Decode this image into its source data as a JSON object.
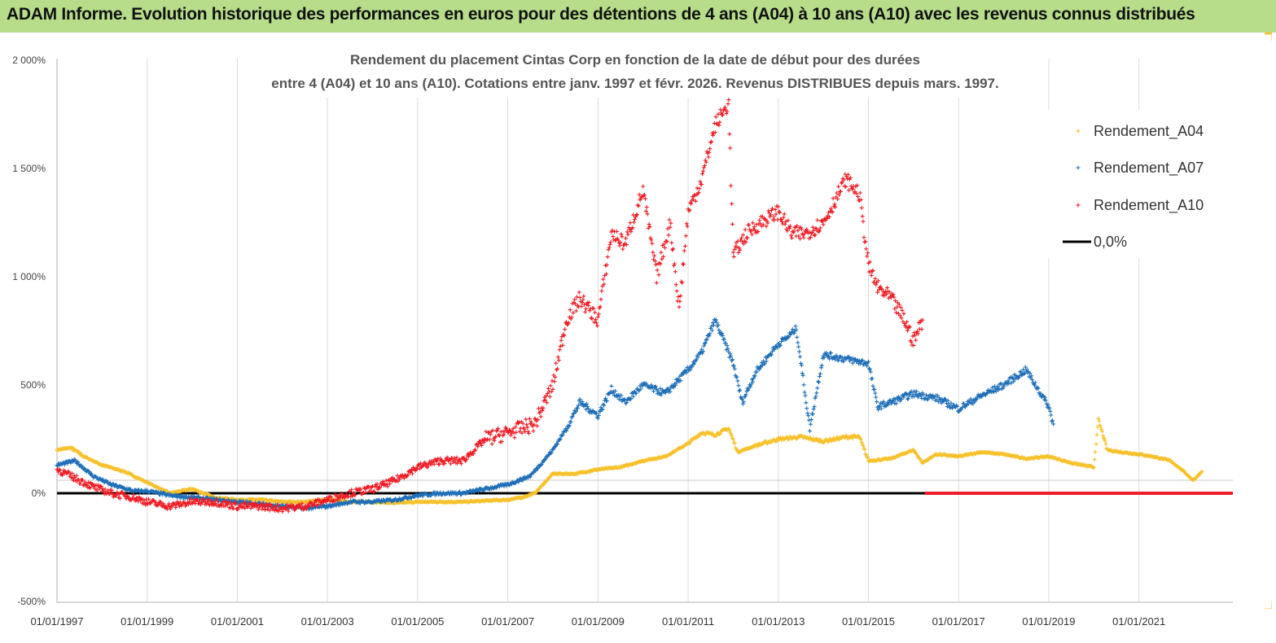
{
  "banner": {
    "title": "ADAM Informe. Evolution historique des performances en euros pour des détentions de 4 ans (A04) à 10 ans (A10) avec les revenus connus distribués"
  },
  "colors": {
    "banner": "#b7dd8a",
    "A04": "#f6c12a",
    "A07": "#1f6fb8",
    "A10": "#ee1c24",
    "zero": "#000000"
  },
  "chart_data": {
    "type": "scatter",
    "title": [
      "Rendement du placement Cintas Corp en fonction de la date de début pour des durées",
      "entre 4 (A04) et 10 ans (A10).  Cotations entre janv. 1997 et févr. 2026. Revenus  DISTRIBUES depuis mars. 1997."
    ],
    "xlabel": "",
    "ylabel": "",
    "xlim": [
      "1997-01-01",
      "2023-02-01"
    ],
    "ylim": [
      -500,
      2000
    ],
    "y_ticks": [
      -500,
      0,
      500,
      1000,
      1500,
      2000
    ],
    "y_tick_labels": [
      "-500%",
      "0%",
      "500%",
      "1 000%",
      "1 500%",
      "2 000%"
    ],
    "x_tick_labels": [
      "01/01/1997",
      "01/01/1999",
      "01/01/2001",
      "01/01/2003",
      "01/01/2005",
      "01/01/2007",
      "01/01/2009",
      "01/01/2011",
      "01/01/2013",
      "01/01/2015",
      "01/01/2017",
      "01/01/2019",
      "01/01/2021"
    ],
    "grid": "vertical",
    "legend_position": "top-right",
    "legend": [
      "Rendement_A04",
      "Rendement_A07",
      "Rendement_A10",
      "0,0%"
    ],
    "series": [
      {
        "name": "Rendement_A04",
        "x": [
          1997.0,
          1997.3,
          1997.6,
          1998.0,
          1998.5,
          1999.0,
          1999.5,
          2000.0,
          2000.5,
          2001.0,
          2001.5,
          2002.0,
          2002.5,
          2003.0,
          2003.5,
          2004.0,
          2004.5,
          2005.0,
          2005.5,
          2006.0,
          2006.5,
          2007.0,
          2007.3,
          2007.6,
          2008.0,
          2008.5,
          2009.0,
          2009.5,
          2010.0,
          2010.5,
          2011.0,
          2011.3,
          2011.6,
          2011.9,
          2012.1,
          2012.5,
          2013.0,
          2013.5,
          2014.0,
          2014.5,
          2014.8,
          2015.0,
          2015.5,
          2016.0,
          2016.2,
          2016.5,
          2017.0,
          2017.5,
          2018.0,
          2018.5,
          2019.0,
          2019.5,
          2020.0,
          2020.1,
          2020.3,
          2020.6,
          2021.0,
          2021.3,
          2021.7,
          2022.0,
          2022.2,
          2022.4
        ],
        "values": [
          200,
          210,
          170,
          130,
          100,
          50,
          0,
          20,
          -20,
          -30,
          -30,
          -40,
          -40,
          -30,
          -40,
          -40,
          -45,
          -40,
          -40,
          -40,
          -35,
          -30,
          -20,
          0,
          90,
          90,
          110,
          120,
          150,
          170,
          230,
          280,
          270,
          300,
          190,
          220,
          250,
          260,
          240,
          260,
          260,
          150,
          160,
          200,
          140,
          180,
          170,
          190,
          180,
          160,
          170,
          140,
          120,
          340,
          200,
          190,
          180,
          170,
          150,
          100,
          60,
          100
        ]
      },
      {
        "name": "Rendement_A07",
        "x": [
          1997.0,
          1997.4,
          1997.8,
          1998.2,
          1998.7,
          1999.0,
          1999.5,
          2000.0,
          2000.5,
          2001.0,
          2001.5,
          2002.0,
          2002.5,
          2003.0,
          2003.5,
          2004.0,
          2004.5,
          2005.0,
          2005.5,
          2006.0,
          2006.5,
          2007.0,
          2007.5,
          2008.0,
          2008.3,
          2008.6,
          2009.0,
          2009.3,
          2009.6,
          2010.0,
          2010.5,
          2011.0,
          2011.3,
          2011.6,
          2012.0,
          2012.2,
          2012.5,
          2013.0,
          2013.2,
          2013.4,
          2013.7,
          2014.0,
          2014.5,
          2015.0,
          2015.2,
          2015.5,
          2016.0,
          2016.5,
          2017.0,
          2017.5,
          2018.0,
          2018.5,
          2019.0,
          2019.1
        ],
        "values": [
          130,
          150,
          80,
          40,
          10,
          10,
          -10,
          -20,
          -30,
          -40,
          -50,
          -60,
          -70,
          -60,
          -40,
          -40,
          -30,
          -10,
          0,
          0,
          20,
          40,
          80,
          200,
          300,
          420,
          360,
          480,
          420,
          500,
          460,
          570,
          650,
          800,
          600,
          420,
          560,
          690,
          720,
          760,
          300,
          640,
          620,
          600,
          400,
          420,
          460,
          440,
          390,
          450,
          500,
          570,
          400,
          320
        ]
      },
      {
        "name": "Rendement_A10",
        "x": [
          1997.0,
          1997.4,
          1997.8,
          1998.2,
          1998.7,
          1999.0,
          1999.5,
          2000.0,
          2000.5,
          2001.0,
          2001.5,
          2002.0,
          2002.5,
          2003.0,
          2003.5,
          2004.0,
          2004.5,
          2005.0,
          2005.5,
          2006.0,
          2006.5,
          2007.0,
          2007.3,
          2007.6,
          2008.0,
          2008.3,
          2008.6,
          2009.0,
          2009.3,
          2009.6,
          2010.0,
          2010.3,
          2010.6,
          2010.8,
          2011.0,
          2011.3,
          2011.6,
          2011.9,
          2012.0,
          2012.3,
          2012.6,
          2013.0,
          2013.3,
          2013.6,
          2014.0,
          2014.5,
          2014.8,
          2015.0,
          2015.2,
          2015.5,
          2015.8,
          2016.0,
          2016.2
        ],
        "values": [
          110,
          70,
          30,
          0,
          -20,
          -40,
          -60,
          -40,
          -40,
          -60,
          -60,
          -70,
          -60,
          -30,
          0,
          20,
          60,
          120,
          150,
          150,
          250,
          280,
          300,
          320,
          500,
          800,
          900,
          800,
          1200,
          1150,
          1400,
          1000,
          1250,
          850,
          1300,
          1450,
          1700,
          1800,
          1100,
          1200,
          1250,
          1300,
          1200,
          1200,
          1250,
          1450,
          1380,
          1050,
          950,
          900,
          800,
          700,
          800
        ]
      },
      {
        "name": "0,0%",
        "x": [
          1997.0,
          2023.0
        ],
        "values": [
          0,
          0
        ]
      }
    ]
  }
}
